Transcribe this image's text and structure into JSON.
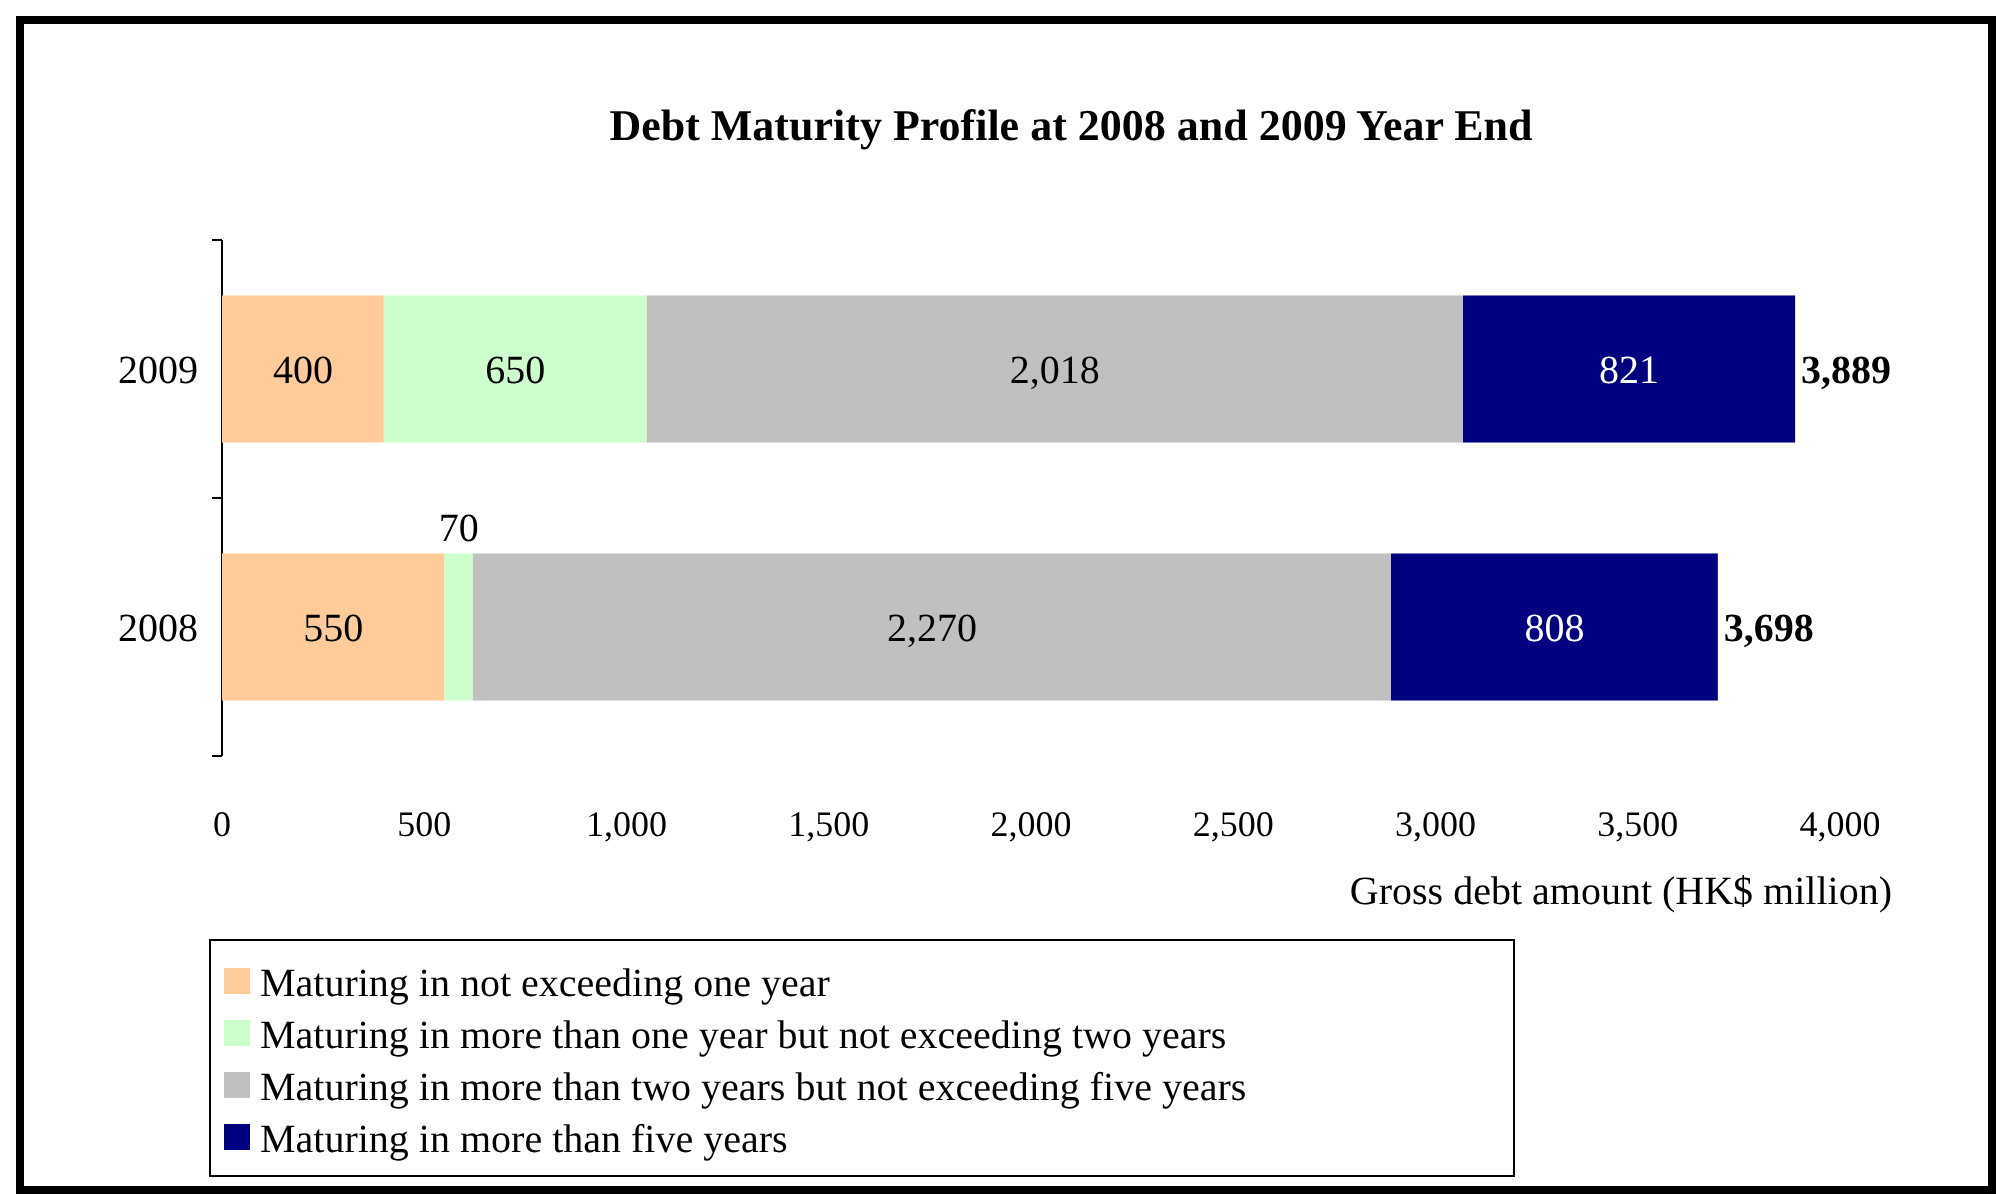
{
  "chart_data": {
    "type": "bar",
    "orientation": "horizontal",
    "stacked": true,
    "title": "Debt Maturity Profile at 2008 and 2009 Year End",
    "xlabel": "Gross debt amount (HK$ million)",
    "categories": [
      "2009",
      "2008"
    ],
    "series": [
      {
        "name": "Maturing in not exceeding one year",
        "color": "#ffcc99",
        "values": [
          400,
          550
        ]
      },
      {
        "name": "Maturing in more than one year but not exceeding two years",
        "color": "#ccffcc",
        "values": [
          650,
          70
        ]
      },
      {
        "name": "Maturing in more than two years but not exceeding five years",
        "color": "#c0c0c0",
        "values": [
          2018,
          2270
        ],
        "value_labels": [
          "2,018",
          "2,270"
        ]
      },
      {
        "name": "Maturing in more than five years",
        "color": "#000080",
        "values": [
          821,
          808
        ]
      }
    ],
    "totals": [
      "3,889",
      "3,698"
    ],
    "data_labels": true,
    "xlim": [
      0,
      4000
    ],
    "xticks": [
      {
        "value": 0,
        "label": "0"
      },
      {
        "value": 500,
        "label": "500"
      },
      {
        "value": 1000,
        "label": "1,000"
      },
      {
        "value": 1500,
        "label": "1,500"
      },
      {
        "value": 2000,
        "label": "2,000"
      },
      {
        "value": 2500,
        "label": "2,500"
      },
      {
        "value": 3000,
        "label": "3,000"
      },
      {
        "value": 3500,
        "label": "3,500"
      },
      {
        "value": 4000,
        "label": "4,000"
      }
    ],
    "grid": false,
    "legend": "bottom"
  }
}
